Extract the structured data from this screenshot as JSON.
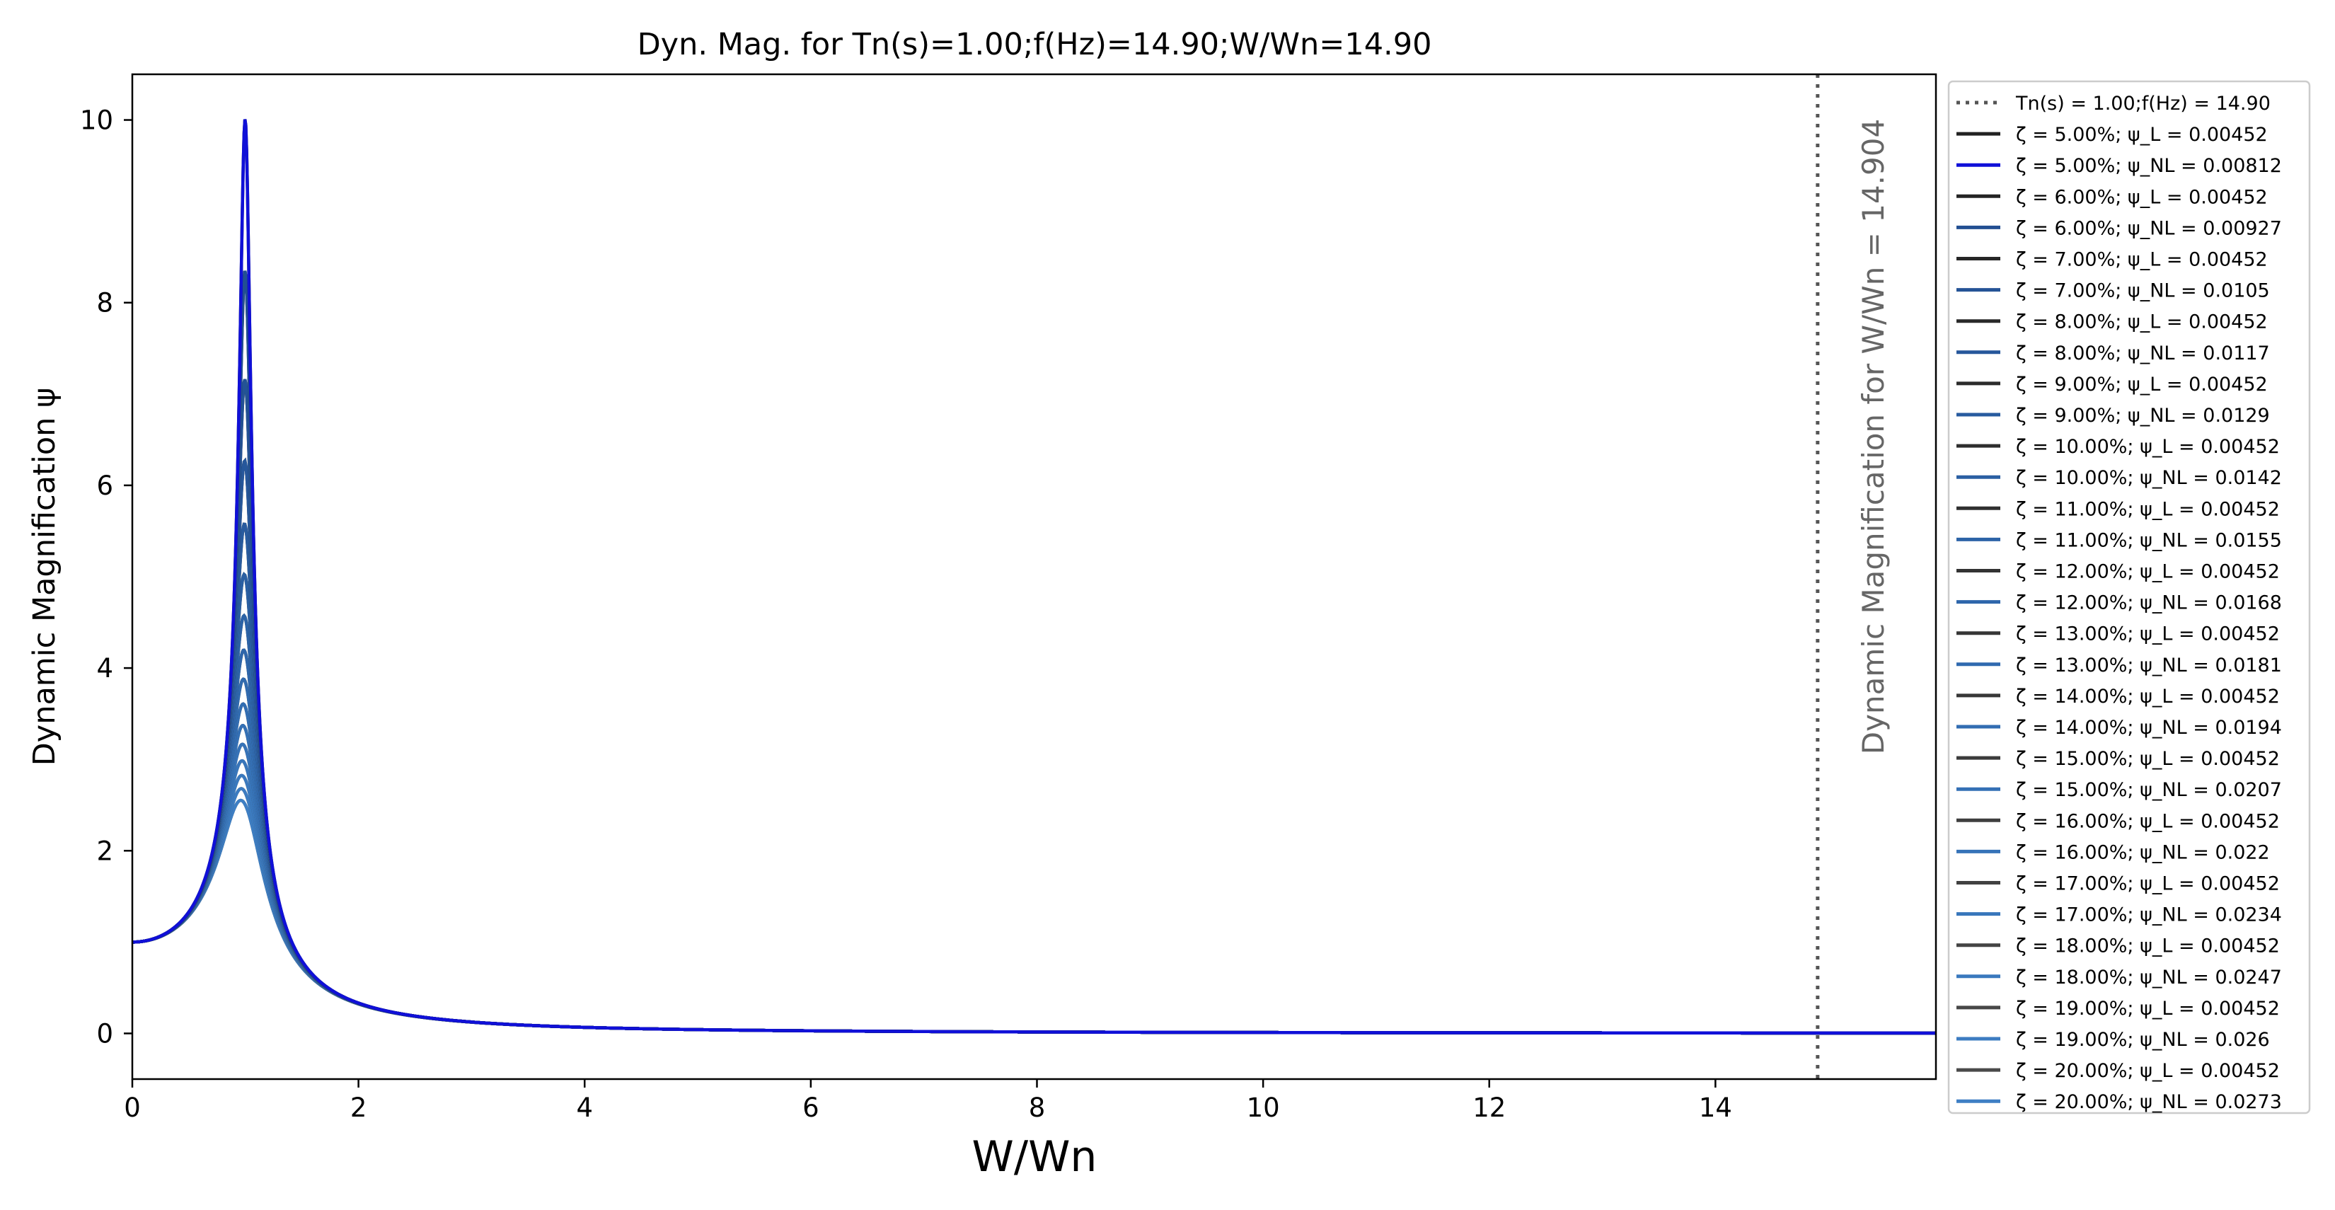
{
  "chart_data": {
    "type": "line",
    "title": "Dyn. Mag. for Tn(s)=1.00;f(Hz)=14.90;W/Wn=14.90",
    "xlabel": "W/Wn",
    "ylabel": "Dynamic Magnification ψ",
    "xlim": [
      0,
      15.95
    ],
    "ylim": [
      -0.5,
      10.5
    ],
    "xticks": [
      0,
      2,
      4,
      6,
      8,
      10,
      12,
      14
    ],
    "yticks": [
      0,
      2,
      4,
      6,
      8,
      10
    ],
    "grid": false,
    "legend_position": "outside-right",
    "vline": {
      "x": 14.904,
      "label": "Tn(s) = 1.00;f(Hz) = 14.90",
      "annotation": "Dynamic Magnification for W/Wn = 14.904",
      "color": "#555555"
    },
    "curve": {
      "formula": "psi = 1/sqrt((1-r^2)^2 + (2*zeta*r)^2)",
      "x_start": 0,
      "x_end": 15.95,
      "samples": 1200
    },
    "series": [
      {
        "name": "ζ = 5.00%; ψ_L = 0.00452",
        "zeta": 0.05,
        "kind": "L",
        "color": "#222222"
      },
      {
        "name": "ζ = 5.00%; ψ_NL = 0.00812",
        "zeta": 0.05,
        "kind": "NL",
        "color": "#1010d8"
      },
      {
        "name": "ζ = 6.00%; ψ_L = 0.00452",
        "zeta": 0.06,
        "kind": "L",
        "color": "#242424"
      },
      {
        "name": "ζ = 6.00%; ψ_NL = 0.00927",
        "zeta": 0.06,
        "kind": "NL",
        "color": "#224f92"
      },
      {
        "name": "ζ = 7.00%; ψ_L = 0.00452",
        "zeta": 0.07,
        "kind": "L",
        "color": "#262626"
      },
      {
        "name": "ζ = 7.00%; ψ_NL = 0.0105",
        "zeta": 0.07,
        "kind": "NL",
        "color": "#245396"
      },
      {
        "name": "ζ = 8.00%; ψ_L = 0.00452",
        "zeta": 0.08,
        "kind": "L",
        "color": "#292929"
      },
      {
        "name": "ζ = 8.00%; ψ_NL = 0.0117",
        "zeta": 0.08,
        "kind": "NL",
        "color": "#26579b"
      },
      {
        "name": "ζ = 9.00%; ψ_L = 0.00452",
        "zeta": 0.09,
        "kind": "L",
        "color": "#2b2b2b"
      },
      {
        "name": "ζ = 9.00%; ψ_NL = 0.0129",
        "zeta": 0.09,
        "kind": "NL",
        "color": "#285b9f"
      },
      {
        "name": "ζ = 10.00%; ψ_L = 0.00452",
        "zeta": 0.1,
        "kind": "L",
        "color": "#2e2e2e"
      },
      {
        "name": "ζ = 10.00%; ψ_NL = 0.0142",
        "zeta": 0.1,
        "kind": "NL",
        "color": "#2a5fa3"
      },
      {
        "name": "ζ = 11.00%; ψ_L = 0.00452",
        "zeta": 0.11,
        "kind": "L",
        "color": "#303030"
      },
      {
        "name": "ζ = 11.00%; ψ_NL = 0.0155",
        "zeta": 0.11,
        "kind": "NL",
        "color": "#2c63a7"
      },
      {
        "name": "ζ = 12.00%; ψ_L = 0.00452",
        "zeta": 0.12,
        "kind": "L",
        "color": "#333333"
      },
      {
        "name": "ζ = 12.00%; ψ_NL = 0.0168",
        "zeta": 0.12,
        "kind": "NL",
        "color": "#2e66ab"
      },
      {
        "name": "ζ = 13.00%; ψ_L = 0.00452",
        "zeta": 0.13,
        "kind": "L",
        "color": "#363636"
      },
      {
        "name": "ζ = 13.00%; ψ_NL = 0.0181",
        "zeta": 0.13,
        "kind": "NL",
        "color": "#306aaf"
      },
      {
        "name": "ζ = 14.00%; ψ_L = 0.00452",
        "zeta": 0.14,
        "kind": "L",
        "color": "#383838"
      },
      {
        "name": "ζ = 14.00%; ψ_NL = 0.0194",
        "zeta": 0.14,
        "kind": "NL",
        "color": "#326db2"
      },
      {
        "name": "ζ = 15.00%; ψ_L = 0.00452",
        "zeta": 0.15,
        "kind": "L",
        "color": "#3b3b3b"
      },
      {
        "name": "ζ = 15.00%; ψ_NL = 0.0207",
        "zeta": 0.15,
        "kind": "NL",
        "color": "#3470b5"
      },
      {
        "name": "ζ = 16.00%; ψ_L = 0.00452",
        "zeta": 0.16,
        "kind": "L",
        "color": "#3e3e3e"
      },
      {
        "name": "ζ = 16.00%; ψ_NL = 0.022",
        "zeta": 0.16,
        "kind": "NL",
        "color": "#3673b8"
      },
      {
        "name": "ζ = 17.00%; ψ_L = 0.00452",
        "zeta": 0.17,
        "kind": "L",
        "color": "#414141"
      },
      {
        "name": "ζ = 17.00%; ψ_NL = 0.0234",
        "zeta": 0.17,
        "kind": "NL",
        "color": "#3876bb"
      },
      {
        "name": "ζ = 18.00%; ψ_L = 0.00452",
        "zeta": 0.18,
        "kind": "L",
        "color": "#444444"
      },
      {
        "name": "ζ = 18.00%; ψ_NL = 0.0247",
        "zeta": 0.18,
        "kind": "NL",
        "color": "#3a79be"
      },
      {
        "name": "ζ = 19.00%; ψ_L = 0.00452",
        "zeta": 0.19,
        "kind": "L",
        "color": "#474747"
      },
      {
        "name": "ζ = 19.00%; ψ_NL = 0.026",
        "zeta": 0.19,
        "kind": "NL",
        "color": "#3c7cc1"
      },
      {
        "name": "ζ = 20.00%; ψ_L = 0.00452",
        "zeta": 0.2,
        "kind": "L",
        "color": "#4a4a4a"
      },
      {
        "name": "ζ = 20.00%; ψ_NL = 0.0273",
        "zeta": 0.2,
        "kind": "NL",
        "color": "#3e7fc4"
      }
    ]
  }
}
